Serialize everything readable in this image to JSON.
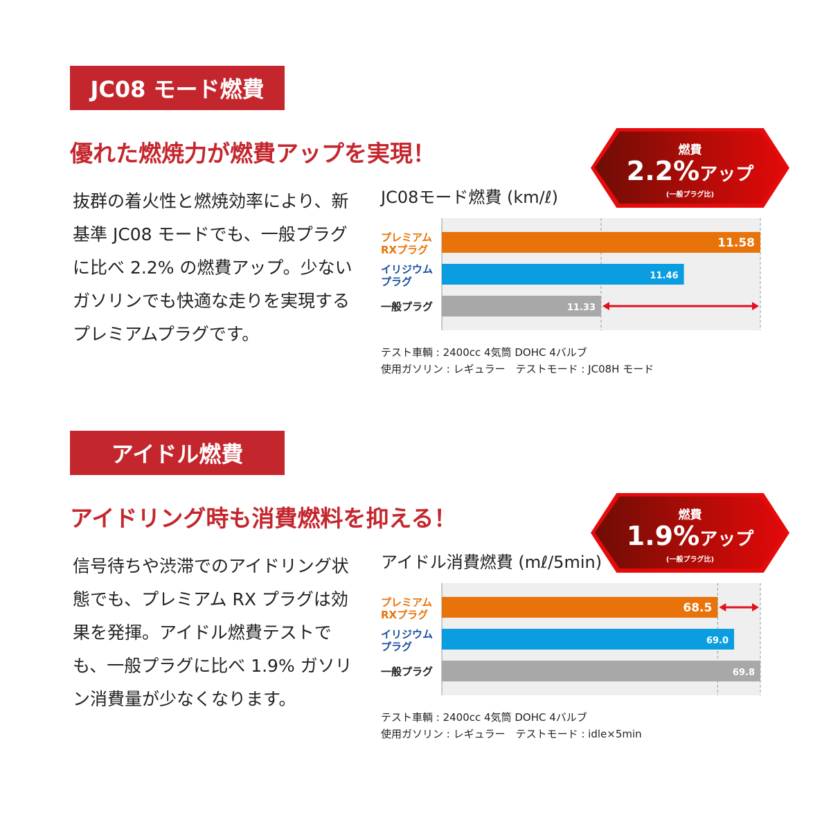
{
  "sections": [
    {
      "tag": "JC08 モード燃費",
      "headline": "優れた燃焼力が燃費アップを実現！",
      "body": "抜群の着火性と燃焼効率により、新基準 JC08 モードでも、一般プラグに比べ 2.2% の燃費アップ。少ないガソリンでも快適な走りを実現するプレミアムプラグです。",
      "badge": {
        "top": "燃費",
        "value": "2.2%",
        "suffix": "アップ",
        "note": "(一般プラグ比)"
      },
      "notes": [
        "テスト車輌 : 2400cc 4気筒 DOHC 4バルブ",
        "使用ガソリン : レギュラー　テストモード : JC08H モード"
      ]
    },
    {
      "tag": "アイドル燃費",
      "headline": "アイドリング時も消費燃料を抑える！",
      "body": "信号待ちや渋滞でのアイドリング状態でも、プレミアム RX プラグは効果を発揮。アイドル燃費テストでも、一般プラグに比べ 1.9% ガソリン消費量が少なくなります。",
      "badge": {
        "top": "燃費",
        "value": "1.9%",
        "suffix": "アップ",
        "note": "(一般プラグ比)"
      },
      "notes": [
        "テスト車輌 : 2400cc 4気筒 DOHC 4バルブ",
        "使用ガソリン : レギュラー　テストモード : idle×5min"
      ]
    }
  ],
  "chart_data": [
    {
      "type": "bar",
      "orientation": "horizontal",
      "title": "JC08モード燃費 (km/ℓ)",
      "categories": [
        "プレミアムRXプラグ",
        "イリジウムプラグ",
        "一般プラグ"
      ],
      "values": [
        11.58,
        11.46,
        11.33
      ],
      "xlim": [
        11.08,
        11.58
      ],
      "colors": [
        "#e8730a",
        "#0a9ee0",
        "#a8a8a8"
      ],
      "label_colors": [
        "#e8730a",
        "#1a4fa0",
        "#222222"
      ],
      "arrow": "11.33-11.58"
    },
    {
      "type": "bar",
      "orientation": "horizontal",
      "title": "アイドル消費燃費 (mℓ/5min)",
      "categories": [
        "プレミアムRXプラグ",
        "イリジウムプラグ",
        "一般プラグ"
      ],
      "values": [
        68.5,
        69.0,
        69.8
      ],
      "xlim": [
        60.1,
        69.8
      ],
      "colors": [
        "#e8730a",
        "#0a9ee0",
        "#a8a8a8"
      ],
      "label_colors": [
        "#e8730a",
        "#1a4fa0",
        "#222222"
      ],
      "arrow": "68.5-69.8"
    }
  ]
}
